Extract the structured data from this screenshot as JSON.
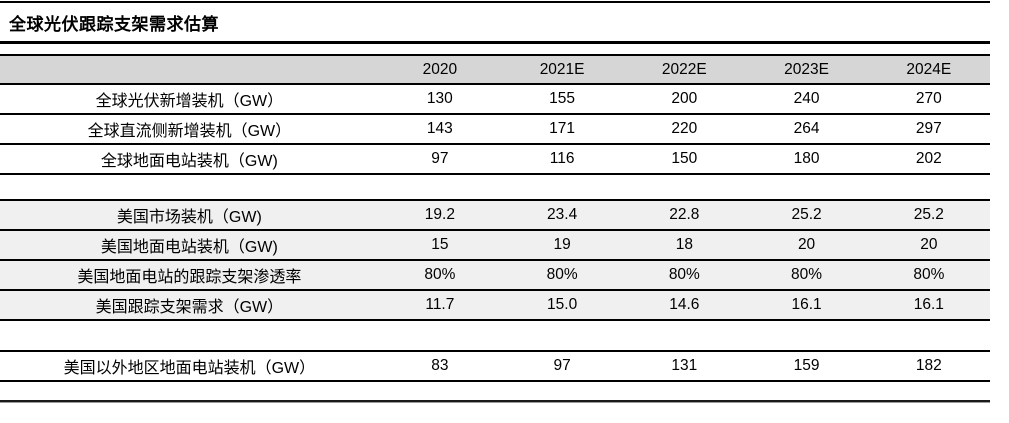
{
  "title": "全球光伏跟踪支架需求估算",
  "chart_data": {
    "type": "table",
    "title": "全球光伏跟踪支架需求估算",
    "columns": [
      "2020",
      "2021E",
      "2022E",
      "2023E",
      "2024E"
    ],
    "sections": [
      {
        "shaded": false,
        "rows": [
          {
            "label": "全球光伏新增装机（GW）",
            "values": [
              "130",
              "155",
              "200",
              "240",
              "270"
            ]
          },
          {
            "label": "全球直流侧新增装机（GW）",
            "values": [
              "143",
              "171",
              "220",
              "264",
              "297"
            ]
          },
          {
            "label": "全球地面电站装机（GW)",
            "values": [
              "97",
              "116",
              "150",
              "180",
              "202"
            ]
          }
        ]
      },
      {
        "shaded": true,
        "rows": [
          {
            "label": "美国市场装机（GW)",
            "values": [
              "19.2",
              "23.4",
              "22.8",
              "25.2",
              "25.2"
            ]
          },
          {
            "label": "美国地面电站装机（GW)",
            "values": [
              "15",
              "19",
              "18",
              "20",
              "20"
            ]
          },
          {
            "label": "美国地面电站的跟踪支架渗透率",
            "values": [
              "80%",
              "80%",
              "80%",
              "80%",
              "80%"
            ]
          },
          {
            "label": "美国跟踪支架需求（GW）",
            "values": [
              "11.7",
              "15.0",
              "14.6",
              "16.1",
              "16.1"
            ]
          }
        ]
      },
      {
        "shaded": false,
        "rows": [
          {
            "label": "美国以外地区地面电站装机（GW）",
            "values": [
              "83",
              "97",
              "131",
              "159",
              "182"
            ]
          }
        ]
      }
    ]
  },
  "colors": {
    "header_bg": "#d6d6d6",
    "shaded_row_bg": "#f0f0f0",
    "rule": "#000000",
    "text": "#000000"
  }
}
